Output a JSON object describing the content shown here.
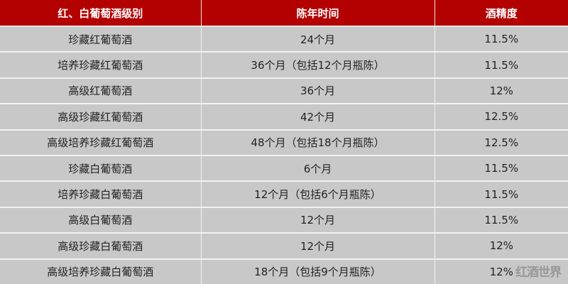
{
  "table": {
    "headers": [
      "红、白葡萄酒级别",
      "陈年时间",
      "酒精度"
    ],
    "rows": [
      [
        "珍藏红葡萄酒",
        "24个月",
        "11.5%"
      ],
      [
        "培养珍藏红葡萄酒",
        "36个月（包括12个月瓶陈）",
        "11.5%"
      ],
      [
        "高级红葡萄酒",
        "36个月",
        "12%"
      ],
      [
        "高级珍藏红葡萄酒",
        "42个月",
        "12.5%"
      ],
      [
        "高级培养珍藏红葡萄酒",
        "48个月（包括18个月瓶陈）",
        "12.5%"
      ],
      [
        "珍藏白葡萄酒",
        "6个月",
        "11.5%"
      ],
      [
        "培养珍藏白葡萄酒",
        "12个月（包括6个月瓶陈）",
        "11.5%"
      ],
      [
        "高级白葡萄酒",
        "12个月",
        "11.5%"
      ],
      [
        "高级珍藏白葡萄酒",
        "12个月",
        "12%"
      ],
      [
        "高级培养珍藏白葡萄酒",
        "18个月（包括9个月瓶陈）",
        "12%"
      ]
    ]
  },
  "watermark": "红酒世界",
  "colors": {
    "header_bg": "#b30000",
    "cell_bg": "#c8c8c8"
  }
}
